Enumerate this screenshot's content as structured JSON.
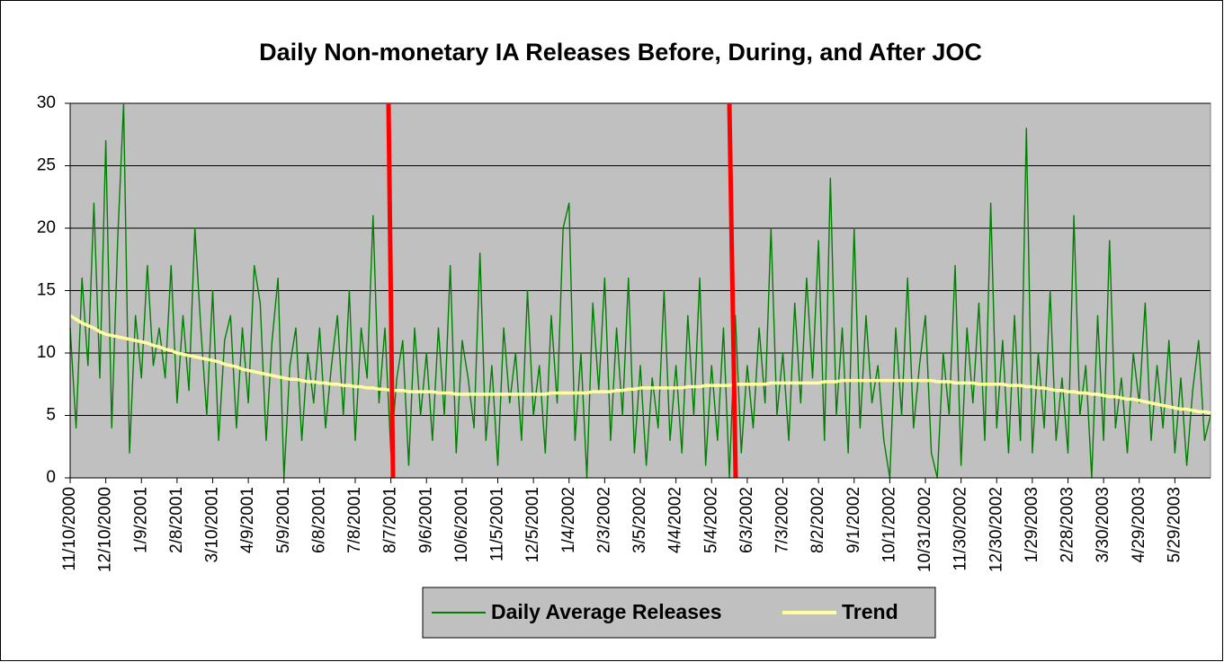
{
  "chart_data": {
    "type": "line",
    "title": "Daily Non-monetary IA Releases Before, During, and After JOC",
    "categories": [
      "11/10/2000",
      null,
      null,
      null,
      null,
      null,
      "12/10/2000",
      null,
      null,
      null,
      null,
      null,
      "1/9/2001",
      null,
      null,
      null,
      null,
      null,
      "2/8/2001",
      null,
      null,
      null,
      null,
      null,
      "3/10/2001",
      null,
      null,
      null,
      null,
      null,
      "4/9/2001",
      null,
      null,
      null,
      null,
      null,
      "5/9/2001",
      null,
      null,
      null,
      null,
      null,
      "6/8/2001",
      null,
      null,
      null,
      null,
      null,
      "7/8/2001",
      null,
      null,
      null,
      null,
      null,
      "8/7/2001",
      null,
      null,
      null,
      null,
      null,
      "9/6/2001",
      null,
      null,
      null,
      null,
      null,
      "10/6/2001",
      null,
      null,
      null,
      null,
      null,
      "11/5/2001",
      null,
      null,
      null,
      null,
      null,
      "12/5/2001",
      null,
      null,
      null,
      null,
      null,
      "1/4/2002",
      null,
      null,
      null,
      null,
      null,
      "2/3/2002",
      null,
      null,
      null,
      null,
      null,
      "3/5/2002",
      null,
      null,
      null,
      null,
      null,
      "4/4/2002",
      null,
      null,
      null,
      null,
      null,
      "5/4/2002",
      null,
      null,
      null,
      null,
      null,
      "6/3/2002",
      null,
      null,
      null,
      null,
      null,
      "7/3/2002",
      null,
      null,
      null,
      null,
      null,
      "8/2/2002",
      null,
      null,
      null,
      null,
      null,
      "9/1/2002",
      null,
      null,
      null,
      null,
      null,
      "10/1/2002",
      null,
      null,
      null,
      null,
      null,
      "10/31/2002",
      null,
      null,
      null,
      null,
      null,
      "11/30/2002",
      null,
      null,
      null,
      null,
      null,
      "12/30/2002",
      null,
      null,
      null,
      null,
      null,
      "1/29/2003",
      null,
      null,
      null,
      null,
      null,
      "2/28/2003",
      null,
      null,
      null,
      null,
      null,
      "3/30/2003",
      null,
      null,
      null,
      null,
      null,
      "4/29/2003",
      null,
      null,
      null,
      null,
      null,
      "5/29/2003",
      null,
      null,
      null,
      null,
      null,
      null
    ],
    "series": [
      {
        "name": "Daily Average Releases",
        "color": "#008000",
        "values": [
          12,
          4,
          16,
          9,
          22,
          8,
          27,
          4,
          19,
          30,
          2,
          13,
          8,
          17,
          9,
          12,
          8,
          17,
          6,
          13,
          7,
          20,
          12,
          5,
          15,
          3,
          11,
          13,
          4,
          12,
          6,
          17,
          14,
          3,
          11,
          16,
          0,
          9,
          12,
          3,
          10,
          6,
          12,
          4,
          9,
          13,
          5,
          15,
          3,
          12,
          8,
          21,
          6,
          12,
          2,
          8,
          11,
          1,
          12,
          5,
          10,
          3,
          12,
          5,
          17,
          2,
          11,
          8,
          4,
          18,
          3,
          9,
          1,
          12,
          6,
          10,
          3,
          15,
          5,
          9,
          2,
          13,
          6,
          20,
          22,
          3,
          10,
          0,
          14,
          7,
          16,
          3,
          12,
          5,
          16,
          2,
          9,
          1,
          8,
          4,
          15,
          3,
          9,
          2,
          13,
          5,
          16,
          1,
          9,
          3,
          12,
          0,
          13,
          2,
          9,
          4,
          12,
          6,
          20,
          5,
          10,
          3,
          14,
          6,
          16,
          8,
          19,
          3,
          24,
          5,
          12,
          2,
          20,
          4,
          13,
          6,
          9,
          3,
          0,
          12,
          5,
          16,
          4,
          9,
          13,
          2,
          0,
          10,
          5,
          17,
          1,
          12,
          6,
          14,
          3,
          22,
          4,
          11,
          2,
          13,
          3,
          28,
          2,
          10,
          4,
          15,
          3,
          8,
          2,
          21,
          5,
          9,
          0,
          13,
          3,
          19,
          4,
          8,
          2,
          10,
          6,
          14,
          3,
          9,
          4,
          11,
          2,
          8,
          1,
          7,
          11,
          3,
          5
        ]
      },
      {
        "name": "Trend",
        "color": "#ffffa0",
        "values": [
          13,
          12.7,
          12.4,
          12.2,
          12,
          11.7,
          11.5,
          11.4,
          11.3,
          11.2,
          11.1,
          11,
          10.9,
          10.8,
          10.6,
          10.5,
          10.3,
          10.2,
          10,
          9.9,
          9.8,
          9.7,
          9.6,
          9.5,
          9.4,
          9.3,
          9.1,
          9,
          8.9,
          8.7,
          8.6,
          8.5,
          8.4,
          8.3,
          8.2,
          8.1,
          8,
          7.9,
          7.9,
          7.8,
          7.7,
          7.7,
          7.6,
          7.6,
          7.5,
          7.5,
          7.4,
          7.4,
          7.3,
          7.3,
          7.2,
          7.2,
          7.1,
          7.1,
          7,
          7,
          7,
          6.9,
          6.9,
          6.9,
          6.9,
          6.9,
          6.8,
          6.8,
          6.8,
          6.7,
          6.7,
          6.7,
          6.7,
          6.7,
          6.7,
          6.7,
          6.7,
          6.7,
          6.7,
          6.7,
          6.7,
          6.7,
          6.7,
          6.7,
          6.7,
          6.8,
          6.8,
          6.8,
          6.8,
          6.8,
          6.8,
          6.8,
          6.9,
          6.9,
          6.9,
          6.9,
          7,
          7,
          7.1,
          7.1,
          7.2,
          7.2,
          7.2,
          7.2,
          7.2,
          7.2,
          7.2,
          7.2,
          7.3,
          7.3,
          7.3,
          7.4,
          7.4,
          7.4,
          7.4,
          7.4,
          7.5,
          7.5,
          7.5,
          7.5,
          7.5,
          7.5,
          7.6,
          7.6,
          7.6,
          7.6,
          7.6,
          7.6,
          7.6,
          7.6,
          7.6,
          7.7,
          7.7,
          7.7,
          7.8,
          7.8,
          7.8,
          7.8,
          7.8,
          7.8,
          7.8,
          7.8,
          7.8,
          7.8,
          7.8,
          7.8,
          7.8,
          7.8,
          7.8,
          7.8,
          7.7,
          7.7,
          7.7,
          7.6,
          7.6,
          7.6,
          7.6,
          7.5,
          7.5,
          7.5,
          7.5,
          7.5,
          7.4,
          7.4,
          7.4,
          7.3,
          7.3,
          7.2,
          7.2,
          7.1,
          7,
          7,
          6.9,
          6.9,
          6.8,
          6.8,
          6.7,
          6.7,
          6.6,
          6.5,
          6.5,
          6.4,
          6.3,
          6.3,
          6.2,
          6.1,
          6,
          5.9,
          5.8,
          5.7,
          5.6,
          5.5,
          5.5,
          5.4,
          5.3,
          5.3,
          5.2
        ]
      }
    ],
    "ylim": [
      0,
      30
    ],
    "yticks": [
      0,
      5,
      10,
      15,
      20,
      25,
      30
    ],
    "grid": true,
    "legend": "bottom"
  }
}
